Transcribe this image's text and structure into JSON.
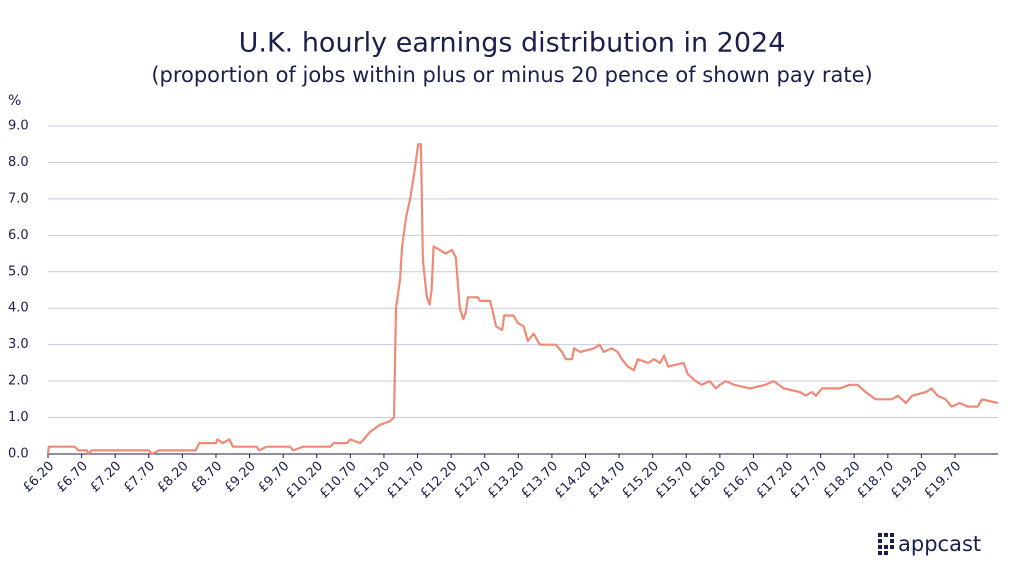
{
  "chart_data": {
    "type": "line",
    "title": "U.K. hourly earnings distribution in 2024",
    "subtitle": "(proportion of jobs within plus or minus 20 pence of shown pay rate)",
    "y_label": "%",
    "brand": "appcast",
    "color": "#ee8a76",
    "grid": true,
    "xlim": [
      6.2,
      20.34
    ],
    "ylim": [
      0,
      9
    ],
    "yticks": [
      {
        "value": 0,
        "label": "0.0"
      },
      {
        "value": 1,
        "label": "1.0"
      },
      {
        "value": 2,
        "label": "2.0"
      },
      {
        "value": 3,
        "label": "3.0"
      },
      {
        "value": 4,
        "label": "4.0"
      },
      {
        "value": 5,
        "label": "5.0"
      },
      {
        "value": 6,
        "label": "6.0"
      },
      {
        "value": 7,
        "label": "7.0"
      },
      {
        "value": 8,
        "label": "8.0"
      },
      {
        "value": 9,
        "label": "9.0"
      }
    ],
    "xticks": [
      {
        "value": 6.2,
        "label": "£6.20"
      },
      {
        "value": 6.7,
        "label": "£6.70"
      },
      {
        "value": 7.2,
        "label": "£7.20"
      },
      {
        "value": 7.7,
        "label": "£7.70"
      },
      {
        "value": 8.2,
        "label": "£8.20"
      },
      {
        "value": 8.7,
        "label": "£8.70"
      },
      {
        "value": 9.2,
        "label": "£9.20"
      },
      {
        "value": 9.7,
        "label": "£9.70"
      },
      {
        "value": 10.2,
        "label": "£10.20"
      },
      {
        "value": 10.7,
        "label": "£10.70"
      },
      {
        "value": 11.2,
        "label": "£11.20"
      },
      {
        "value": 11.7,
        "label": "£11.70"
      },
      {
        "value": 12.2,
        "label": "£12.20"
      },
      {
        "value": 12.7,
        "label": "£12.70"
      },
      {
        "value": 13.2,
        "label": "£13.20"
      },
      {
        "value": 13.7,
        "label": "£13.70"
      },
      {
        "value": 14.2,
        "label": "£14.20"
      },
      {
        "value": 14.7,
        "label": "£14.70"
      },
      {
        "value": 15.2,
        "label": "£15.20"
      },
      {
        "value": 15.7,
        "label": "£15.70"
      },
      {
        "value": 16.2,
        "label": "£16.20"
      },
      {
        "value": 16.7,
        "label": "£16.70"
      },
      {
        "value": 17.2,
        "label": "£17.20"
      },
      {
        "value": 17.7,
        "label": "£17.70"
      },
      {
        "value": 18.2,
        "label": "£18.20"
      },
      {
        "value": 18.7,
        "label": "£18.70"
      },
      {
        "value": 19.2,
        "label": "£19.20"
      },
      {
        "value": 19.7,
        "label": "£19.70"
      }
    ],
    "x": [
      6.2,
      6.21,
      6.6,
      6.65,
      6.78,
      6.8,
      6.85,
      7.7,
      7.75,
      7.85,
      8.4,
      8.45,
      8.7,
      8.72,
      8.8,
      8.9,
      8.95,
      9.3,
      9.35,
      9.45,
      9.8,
      9.85,
      10.0,
      10.4,
      10.45,
      10.65,
      10.7,
      10.85,
      10.99,
      11.14,
      11.29,
      11.35,
      11.38,
      11.44,
      11.47,
      11.53,
      11.59,
      11.65,
      11.71,
      11.75,
      11.78,
      11.84,
      11.88,
      11.91,
      11.94,
      12.03,
      12.12,
      12.21,
      12.27,
      12.33,
      12.38,
      12.42,
      12.45,
      12.6,
      12.63,
      12.78,
      12.82,
      12.87,
      12.96,
      12.99,
      13.13,
      13.19,
      13.28,
      13.34,
      13.43,
      13.52,
      13.76,
      13.85,
      13.91,
      14.0,
      14.03,
      14.12,
      14.33,
      14.41,
      14.47,
      14.59,
      14.68,
      14.74,
      14.83,
      14.92,
      14.98,
      15.13,
      15.22,
      15.31,
      15.37,
      15.43,
      15.66,
      15.72,
      15.78,
      15.84,
      15.93,
      16.05,
      16.14,
      16.2,
      16.29,
      16.41,
      16.65,
      16.88,
      17.0,
      17.15,
      17.39,
      17.48,
      17.57,
      17.63,
      17.72,
      17.99,
      18.13,
      18.25,
      18.37,
      18.52,
      18.76,
      18.85,
      18.97,
      19.06,
      19.27,
      19.35,
      19.44,
      19.56,
      19.65,
      19.77,
      19.89,
      20.04,
      20.1,
      20.34
    ],
    "series": [
      {
        "values": [
          0.0,
          0.2,
          0.2,
          0.1,
          0.1,
          0.0,
          0.1,
          0.1,
          0.0,
          0.1,
          0.1,
          0.3,
          0.3,
          0.4,
          0.3,
          0.4,
          0.2,
          0.2,
          0.1,
          0.2,
          0.2,
          0.1,
          0.2,
          0.2,
          0.3,
          0.3,
          0.4,
          0.3,
          0.6,
          0.8,
          0.9,
          1.0,
          4.0,
          4.8,
          5.7,
          6.5,
          7.0,
          7.7,
          8.5,
          8.5,
          5.3,
          4.3,
          4.1,
          4.5,
          5.7,
          5.6,
          5.5,
          5.6,
          5.4,
          4.0,
          3.7,
          3.9,
          4.3,
          4.3,
          4.2,
          4.2,
          3.9,
          3.5,
          3.4,
          3.8,
          3.8,
          3.6,
          3.5,
          3.1,
          3.3,
          3.0,
          3.0,
          2.8,
          2.6,
          2.6,
          2.9,
          2.8,
          2.9,
          3.0,
          2.8,
          2.9,
          2.8,
          2.6,
          2.4,
          2.3,
          2.6,
          2.5,
          2.6,
          2.5,
          2.7,
          2.4,
          2.5,
          2.2,
          2.1,
          2.0,
          1.9,
          2.0,
          1.8,
          1.9,
          2.0,
          1.9,
          1.8,
          1.9,
          2.0,
          1.8,
          1.7,
          1.6,
          1.7,
          1.6,
          1.8,
          1.8,
          1.9,
          1.9,
          1.7,
          1.5,
          1.5,
          1.6,
          1.4,
          1.6,
          1.7,
          1.8,
          1.6,
          1.5,
          1.3,
          1.4,
          1.3,
          1.3,
          1.5,
          1.4
        ]
      }
    ]
  }
}
